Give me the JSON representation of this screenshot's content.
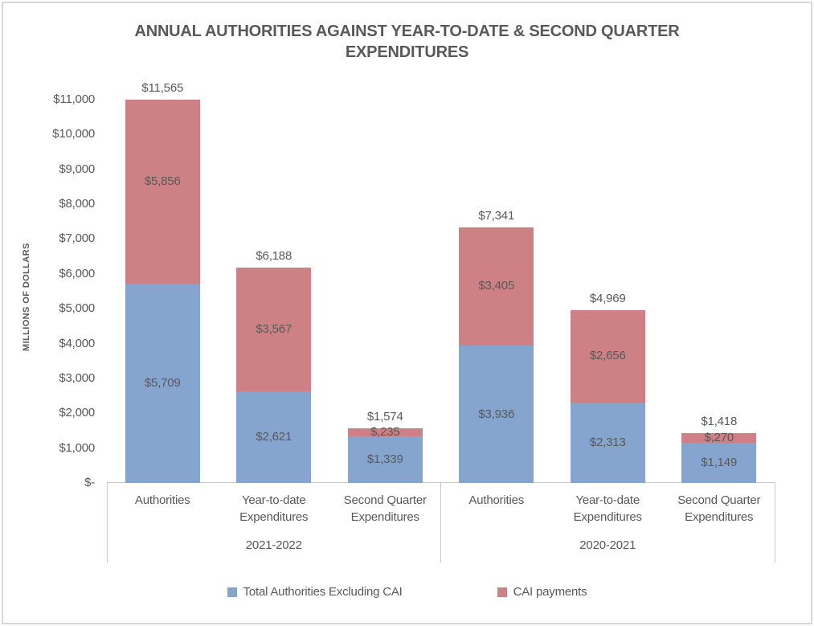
{
  "colors": {
    "series_blue": "#85A4CE",
    "series_red": "#CD8185",
    "text": "#595959",
    "axis_lines": "#C9C9C9",
    "chart_border": "#D9D9D9"
  },
  "chart_data": {
    "type": "bar",
    "stacked": true,
    "title": "ANNUAL AUTHORITIES AGAINST YEAR-TO-DATE & SECOND QUARTER EXPENDITURES",
    "ylabel": "MILLIONS OF DOLLARS",
    "xlabel": "",
    "ylim": [
      0,
      11000
    ],
    "grid": false,
    "legend_position": "bottom",
    "y_ticks": [
      {
        "value": 0,
        "label": "$-"
      },
      {
        "value": 1000,
        "label": "$1,000"
      },
      {
        "value": 2000,
        "label": "$2,000"
      },
      {
        "value": 3000,
        "label": "$3,000"
      },
      {
        "value": 4000,
        "label": "$4,000"
      },
      {
        "value": 5000,
        "label": "$5,000"
      },
      {
        "value": 6000,
        "label": "$6,000"
      },
      {
        "value": 7000,
        "label": "$7,000"
      },
      {
        "value": 8000,
        "label": "$8,000"
      },
      {
        "value": 9000,
        "label": "$9,000"
      },
      {
        "value": 10000,
        "label": "$10,000"
      },
      {
        "value": 11000,
        "label": "$11,000"
      }
    ],
    "groups": [
      {
        "label": "2021-2022",
        "categories": [
          "Authorities",
          "Year-to-date Expenditures",
          "Second Quarter Expenditures"
        ]
      },
      {
        "label": "2020-2021",
        "categories": [
          "Authorities",
          "Year-to-date Expenditures",
          "Second Quarter Expenditures"
        ]
      }
    ],
    "series": [
      {
        "name": "Total Authorities Excluding CAI",
        "color": "#85A4CE",
        "values": [
          5709,
          2621,
          1339,
          3936,
          2313,
          1149
        ],
        "data_labels": [
          "$5,709",
          "$2,621",
          "$1,339",
          "$3,936",
          "$2,313",
          "$1,149"
        ]
      },
      {
        "name": "CAI payments",
        "color": "#CD8185",
        "values": [
          5856,
          3567,
          235,
          3405,
          2656,
          270
        ],
        "data_labels": [
          "$5,856",
          "$3,567",
          "$,235",
          "$3,405",
          "$2,656",
          "$,270"
        ]
      }
    ],
    "totals": {
      "values": [
        11565,
        6188,
        1574,
        7341,
        4969,
        1418
      ],
      "labels": [
        "$11,565",
        "$6,188",
        "$1,574",
        "$7,341",
        "$4,969",
        "$1,418"
      ]
    }
  }
}
